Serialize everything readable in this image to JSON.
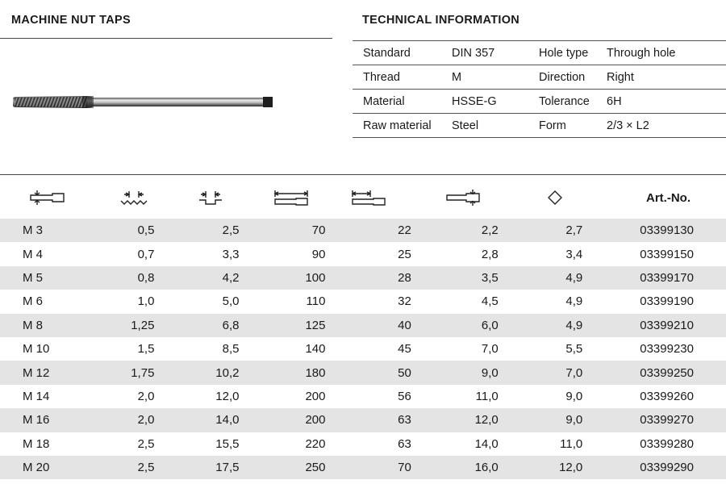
{
  "left_section": {
    "title": "MACHINE NUT TAPS"
  },
  "technical_information": {
    "title": "TECHNICAL INFORMATION",
    "rows": [
      {
        "label1": "Standard",
        "value1": "DIN 357",
        "label2": "Hole type",
        "value2": "Through hole"
      },
      {
        "label1": "Thread",
        "value1": "M",
        "label2": "Direction",
        "value2": "Right"
      },
      {
        "label1": "Material",
        "value1": "HSSE-G",
        "label2": "Tolerance",
        "value2": "6H"
      },
      {
        "label1": "Raw material",
        "value1": "Steel",
        "label2": "Form",
        "value2": "2/3 × L2"
      }
    ]
  },
  "table": {
    "header_icons": [
      "nominal-diameter-icon",
      "thread-pitch-icon",
      "thread-length-icon",
      "total-length-icon",
      "shank-length-icon",
      "shank-diameter-icon",
      "square-icon"
    ],
    "art_no_header": "Art.-No.",
    "rows": [
      [
        "M 3",
        "0,5",
        "2,5",
        "70",
        "22",
        "2,2",
        "2,7",
        "03399130"
      ],
      [
        "M 4",
        "0,7",
        "3,3",
        "90",
        "25",
        "2,8",
        "3,4",
        "03399150"
      ],
      [
        "M 5",
        "0,8",
        "4,2",
        "100",
        "28",
        "3,5",
        "4,9",
        "03399170"
      ],
      [
        "M 6",
        "1,0",
        "5,0",
        "110",
        "32",
        "4,5",
        "4,9",
        "03399190"
      ],
      [
        "M 8",
        "1,25",
        "6,8",
        "125",
        "40",
        "6,0",
        "4,9",
        "03399210"
      ],
      [
        "M 10",
        "1,5",
        "8,5",
        "140",
        "45",
        "7,0",
        "5,5",
        "03399230"
      ],
      [
        "M 12",
        "1,75",
        "10,2",
        "180",
        "50",
        "9,0",
        "7,0",
        "03399250"
      ],
      [
        "M 14",
        "2,0",
        "12,0",
        "200",
        "56",
        "11,0",
        "9,0",
        "03399260"
      ],
      [
        "M 16",
        "2,0",
        "14,0",
        "200",
        "63",
        "12,0",
        "9,0",
        "03399270"
      ],
      [
        "M 18",
        "2,5",
        "15,5",
        "220",
        "63",
        "14,0",
        "11,0",
        "03399280"
      ],
      [
        "M 20",
        "2,5",
        "17,5",
        "250",
        "70",
        "16,0",
        "12,0",
        "03399290"
      ]
    ],
    "stripe_color": "#e4e4e4"
  }
}
